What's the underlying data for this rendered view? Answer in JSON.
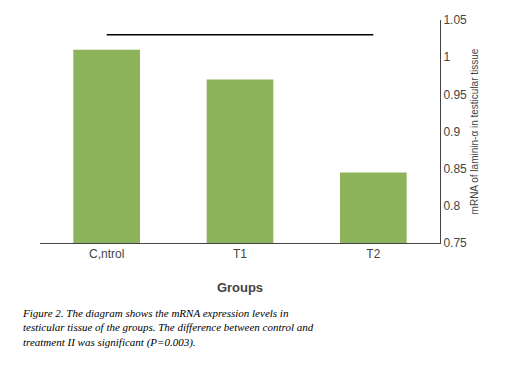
{
  "chart_data": {
    "type": "bar",
    "categories": [
      "C,ntrol",
      "T1",
      "T2"
    ],
    "values": [
      1.01,
      0.97,
      0.845
    ],
    "color": "#8db45a",
    "xlabel": "Groups",
    "ylabel": "mRNA of laminin-α in testicular tissue",
    "ylim": [
      0.75,
      1.05
    ],
    "yticks": [
      0.75,
      0.8,
      0.85,
      0.9,
      0.95,
      1,
      1.05
    ],
    "grid": false,
    "sig_line": {
      "from": "C,ntrol",
      "to": "T2",
      "y": 1.03
    },
    "caption": "Figure 2. The diagram shows the mRNA expression levels in\ntesticular tissue of the groups. The difference between control and\ntreatment II was significant (P=0.003)."
  }
}
